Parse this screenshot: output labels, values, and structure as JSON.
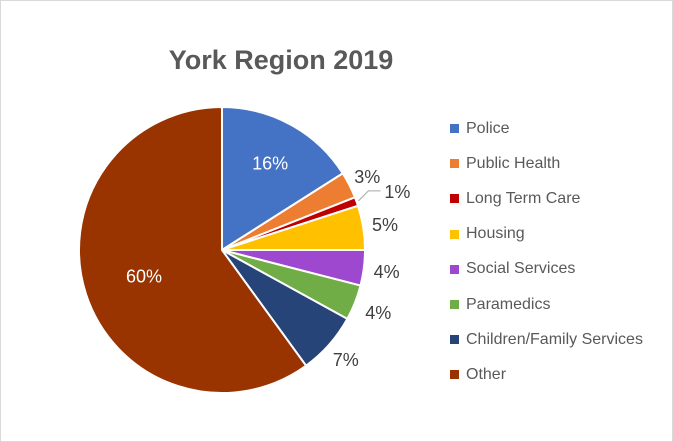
{
  "chart_data": {
    "type": "pie",
    "title": "York Region 2019",
    "legend_position": "right",
    "series": [
      {
        "label": "Police",
        "value": 16,
        "data_label": "16%",
        "color": "#4472c4"
      },
      {
        "label": "Public Health",
        "value": 3,
        "data_label": "3%",
        "color": "#ed7d31"
      },
      {
        "label": "Long Term Care",
        "value": 1,
        "data_label": "1%",
        "color": "#c00000"
      },
      {
        "label": "Housing",
        "value": 5,
        "data_label": "5%",
        "color": "#ffc000"
      },
      {
        "label": "Social Services",
        "value": 4,
        "data_label": "4%",
        "color": "#9e48cf"
      },
      {
        "label": "Paramedics",
        "value": 4,
        "data_label": "4%",
        "color": "#70ad47"
      },
      {
        "label": "Children/Family Services",
        "value": 7,
        "data_label": "7%",
        "color": "#264478"
      },
      {
        "label": "Other",
        "value": 60,
        "data_label": "60%",
        "color": "#993300"
      }
    ]
  }
}
